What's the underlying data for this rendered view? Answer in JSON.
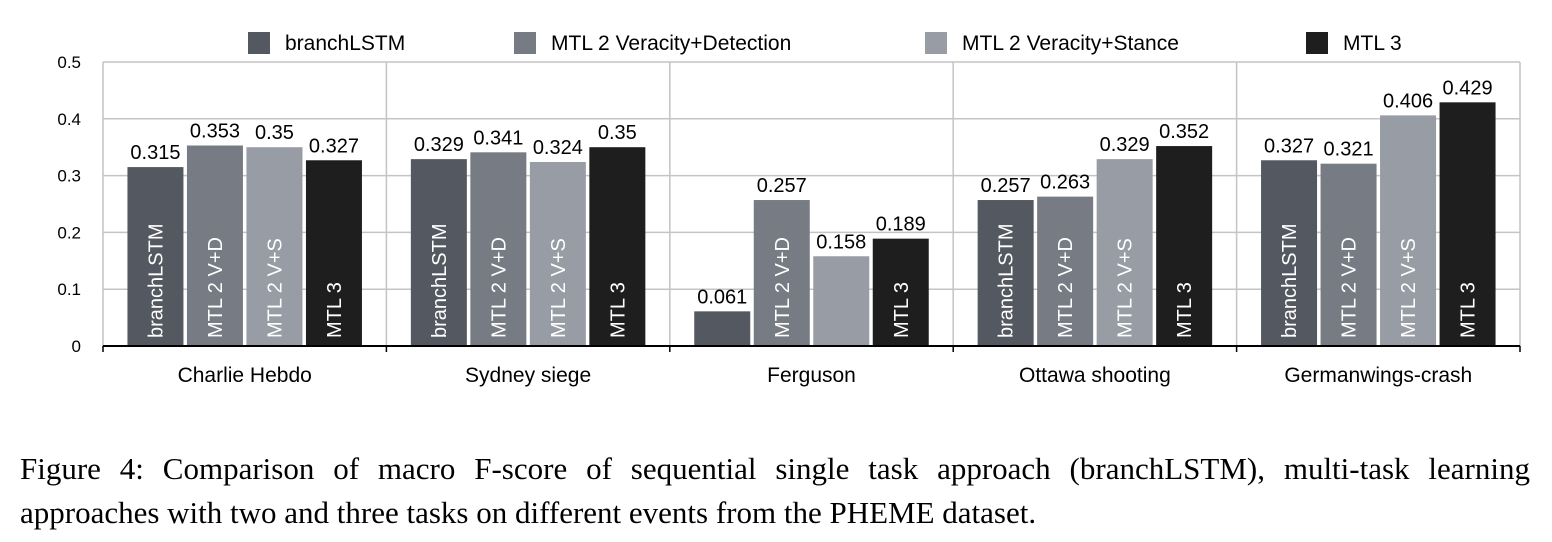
{
  "chart_data": {
    "type": "bar",
    "categories": [
      "Charlie Hebdo",
      "Sydney siege",
      "Ferguson",
      "Ottawa shooting",
      "Germanwings-crash"
    ],
    "series": [
      {
        "name": "branchLSTM",
        "bar_label": "branchLSTM",
        "color": "#545860",
        "values": [
          0.315,
          0.329,
          0.061,
          0.257,
          0.327
        ]
      },
      {
        "name": "MTL 2 Veracity+Detection",
        "bar_label": "MTL 2 V+D",
        "color": "#777b83",
        "values": [
          0.353,
          0.341,
          0.257,
          0.263,
          0.321
        ]
      },
      {
        "name": "MTL 2 Veracity+Stance",
        "bar_label": "MTL 2 V+S",
        "color": "#989ca5",
        "values": [
          0.35,
          0.324,
          0.158,
          0.329,
          0.406
        ]
      },
      {
        "name": "MTL 3",
        "bar_label": "MTL 3",
        "color": "#1e1e1e",
        "values": [
          0.327,
          0.35,
          0.189,
          0.352,
          0.429
        ]
      }
    ],
    "value_labels": [
      [
        "0.315",
        "0.329",
        "0.061",
        "0.257",
        "0.327"
      ],
      [
        "0.353",
        "0.341",
        "0.257",
        "0.263",
        "0.321"
      ],
      [
        "0.35",
        "0.324",
        "0.158",
        "0.329",
        "0.406"
      ],
      [
        "0.327",
        "0.35",
        "0.189",
        "0.352",
        "0.429"
      ]
    ],
    "bar_labels_shown": [
      [
        true,
        true,
        false,
        true,
        true
      ],
      [
        true,
        true,
        true,
        true,
        true
      ],
      [
        true,
        true,
        false,
        true,
        true
      ],
      [
        true,
        true,
        true,
        true,
        true
      ]
    ],
    "y_ticks": [
      "0",
      "0.1",
      "0.2",
      "0.3",
      "0.4",
      "0.5"
    ],
    "ylim": [
      0,
      0.5
    ],
    "legend_position": "top",
    "grid": true,
    "title": "",
    "xlabel": "",
    "ylabel": ""
  },
  "caption": "Figure 4: Comparison of macro F-score of sequential single task approach (branchLSTM), multi-task learning approaches with two and three tasks on different events from the PHEME dataset."
}
